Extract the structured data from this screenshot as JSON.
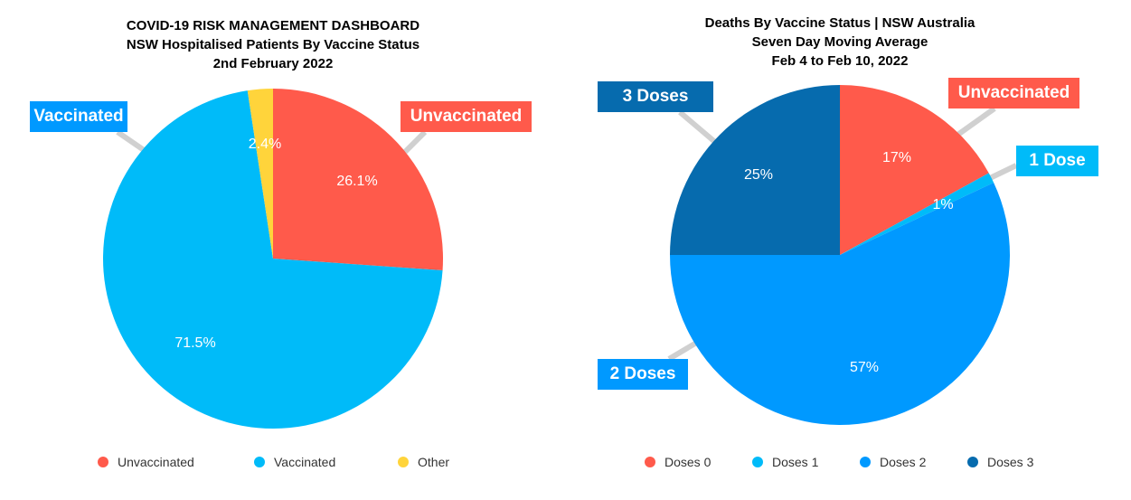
{
  "chart_data": [
    {
      "type": "pie",
      "title": [
        "COVID-19 RISK MANAGEMENT DASHBOARD",
        "NSW Hospitalised Patients By Vaccine Status",
        "2nd February 2022"
      ],
      "categories": [
        "Unvaccinated",
        "Vaccinated",
        "Other"
      ],
      "values": [
        26.1,
        71.5,
        2.4
      ],
      "data_labels": [
        "26.1%",
        "71.5%",
        "2.4%"
      ],
      "colors": [
        "#FF5A4B",
        "#00BBF9",
        "#FFD43B"
      ],
      "callouts": [
        "Unvaccinated",
        "Vaccinated"
      ],
      "legend": [
        "Unvaccinated",
        "Vaccinated",
        "Other"
      ],
      "legend_position": "bottom"
    },
    {
      "type": "pie",
      "title": [
        "Deaths By Vaccine Status | NSW Australia",
        "Seven Day Moving Average",
        "Feb 4 to Feb 10, 2022"
      ],
      "categories": [
        "Doses 0",
        "Doses 1",
        "Doses 2",
        "Doses 3"
      ],
      "values": [
        17,
        1,
        57,
        25
      ],
      "data_labels": [
        "17%",
        "1%",
        "57%",
        "25%"
      ],
      "colors": [
        "#FF5A4B",
        "#00BBF9",
        "#0099FF",
        "#066BAE"
      ],
      "callouts": [
        "Unvaccinated",
        "1 Dose",
        "2 Doses",
        "3 Doses"
      ],
      "legend": [
        "Doses 0",
        "Doses 1",
        "Doses 2",
        "Doses 3"
      ],
      "legend_position": "bottom"
    }
  ]
}
